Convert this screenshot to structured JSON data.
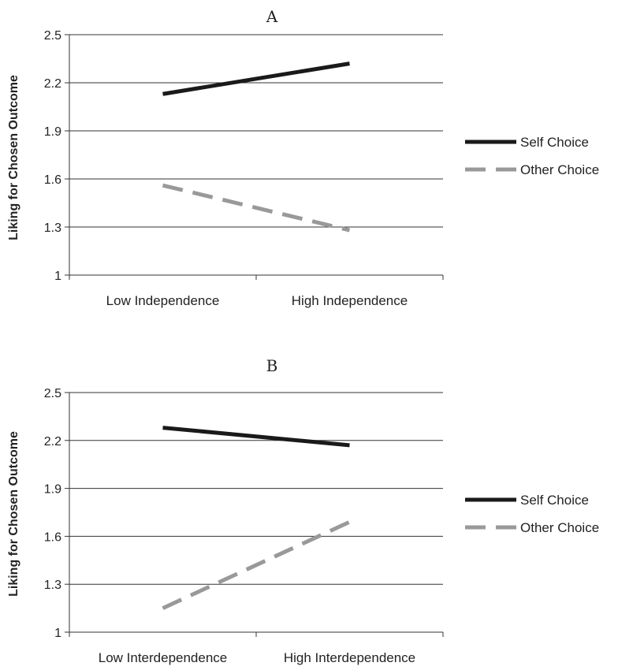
{
  "chart_data": [
    {
      "type": "line",
      "title": "A",
      "xlabel": "",
      "ylabel": "Liking for Chosen Outcome",
      "categories": [
        "Low Independence",
        "High Independence"
      ],
      "ylim": [
        1,
        2.5
      ],
      "yticks": [
        "1",
        "1.3",
        "1.6",
        "1.9",
        "2.2",
        "2.5"
      ],
      "grid": true,
      "legend_position": "right",
      "series": [
        {
          "name": "Self Choice",
          "values": [
            2.13,
            2.32
          ],
          "color": "#1a1a1a",
          "style": "solid"
        },
        {
          "name": "Other Choice",
          "values": [
            1.56,
            1.28
          ],
          "color": "#999999",
          "style": "dashed"
        }
      ]
    },
    {
      "type": "line",
      "title": "B",
      "xlabel": "",
      "ylabel": "Liking for Chosen Outcome",
      "categories": [
        "Low Interdependence",
        "High Interdependence"
      ],
      "ylim": [
        1,
        2.5
      ],
      "yticks": [
        "1",
        "1.3",
        "1.6",
        "1.9",
        "2.2",
        "2.5"
      ],
      "grid": true,
      "legend_position": "right",
      "series": [
        {
          "name": "Self Choice",
          "values": [
            2.28,
            2.17
          ],
          "color": "#1a1a1a",
          "style": "solid"
        },
        {
          "name": "Other Choice",
          "values": [
            1.15,
            1.69
          ],
          "color": "#999999",
          "style": "dashed"
        }
      ]
    }
  ]
}
